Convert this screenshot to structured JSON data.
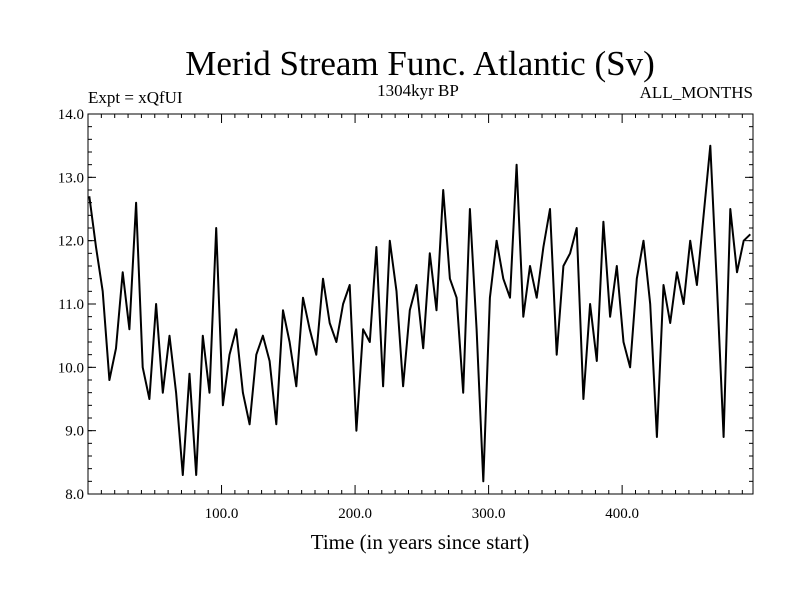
{
  "chart_data": {
    "type": "line",
    "title": "Merid Stream Func. Atlantic (Sv)",
    "subtitle_left": "Expt = xQfUI",
    "subtitle_center": "1304kyr BP",
    "subtitle_right": "ALL_MONTHS",
    "xlabel": "Time (in years since start)",
    "ylabel": "",
    "xlim": [
      0,
      498
    ],
    "ylim": [
      8.0,
      14.0
    ],
    "xticks": [
      100,
      200,
      300,
      400
    ],
    "xtick_labels": [
      "100.0",
      "200.0",
      "300.0",
      "400.0"
    ],
    "yticks": [
      8,
      9,
      10,
      11,
      12,
      13,
      14
    ],
    "ytick_labels": [
      "8.0",
      "9.0",
      "10.0",
      "11.0",
      "12.0",
      "13.0",
      "14.0"
    ],
    "series": [
      {
        "name": "Meridional stream function",
        "color": "#000000",
        "x": [
          1,
          6,
          11,
          16,
          21,
          26,
          31,
          36,
          41,
          46,
          51,
          56,
          61,
          66,
          71,
          76,
          81,
          86,
          91,
          96,
          101,
          106,
          111,
          116,
          121,
          126,
          131,
          136,
          141,
          146,
          151,
          156,
          161,
          166,
          171,
          176,
          181,
          186,
          191,
          196,
          201,
          206,
          211,
          216,
          221,
          226,
          231,
          236,
          241,
          246,
          251,
          256,
          261,
          266,
          271,
          276,
          281,
          286,
          291,
          296,
          301,
          306,
          311,
          316,
          321,
          326,
          331,
          336,
          341,
          346,
          351,
          356,
          361,
          366,
          371,
          376,
          381,
          386,
          391,
          396,
          401,
          406,
          411,
          416,
          421,
          426,
          431,
          436,
          441,
          446,
          451,
          456,
          461,
          466,
          471,
          476,
          481,
          486,
          491,
          496
        ],
        "values": [
          12.7,
          11.9,
          11.2,
          9.8,
          10.3,
          11.5,
          10.6,
          12.6,
          10.0,
          9.5,
          11.0,
          9.6,
          10.5,
          9.6,
          8.3,
          9.9,
          8.3,
          10.5,
          9.6,
          12.2,
          9.4,
          10.2,
          10.6,
          9.6,
          9.1,
          10.2,
          10.5,
          10.1,
          9.1,
          10.9,
          10.4,
          9.7,
          11.1,
          10.6,
          10.2,
          11.4,
          10.7,
          10.4,
          11.0,
          11.3,
          9.0,
          10.6,
          10.4,
          11.9,
          9.7,
          12.0,
          11.2,
          9.7,
          10.9,
          11.3,
          10.3,
          11.8,
          10.9,
          12.8,
          11.4,
          11.1,
          9.6,
          12.5,
          10.6,
          8.2,
          11.1,
          12.0,
          11.4,
          11.1,
          13.2,
          10.8,
          11.6,
          11.1,
          11.9,
          12.5,
          10.2,
          11.6,
          11.8,
          12.2,
          9.5,
          11.0,
          10.1,
          12.3,
          10.8,
          11.6,
          10.4,
          10.0,
          11.4,
          12.0,
          11.0,
          8.9,
          11.3,
          10.7,
          11.5,
          11.0,
          12.0,
          11.3,
          12.4,
          13.5,
          11.3,
          8.9,
          12.5,
          11.5,
          12.0,
          12.1
        ]
      }
    ]
  }
}
